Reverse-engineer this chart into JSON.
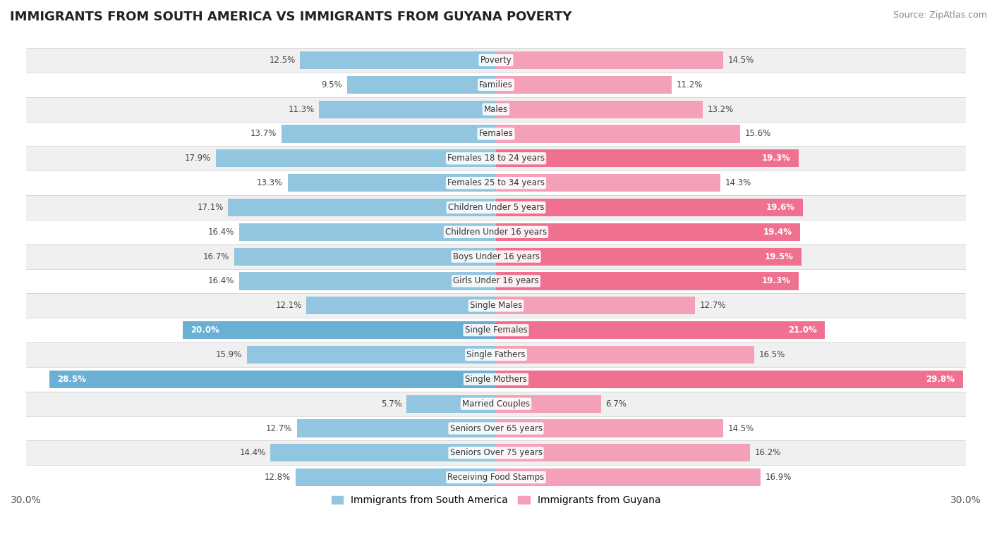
{
  "title": "IMMIGRANTS FROM SOUTH AMERICA VS IMMIGRANTS FROM GUYANA POVERTY",
  "source": "Source: ZipAtlas.com",
  "categories": [
    "Poverty",
    "Families",
    "Males",
    "Females",
    "Females 18 to 24 years",
    "Females 25 to 34 years",
    "Children Under 5 years",
    "Children Under 16 years",
    "Boys Under 16 years",
    "Girls Under 16 years",
    "Single Males",
    "Single Females",
    "Single Fathers",
    "Single Mothers",
    "Married Couples",
    "Seniors Over 65 years",
    "Seniors Over 75 years",
    "Receiving Food Stamps"
  ],
  "south_america": [
    12.5,
    9.5,
    11.3,
    13.7,
    17.9,
    13.3,
    17.1,
    16.4,
    16.7,
    16.4,
    12.1,
    20.0,
    15.9,
    28.5,
    5.7,
    12.7,
    14.4,
    12.8
  ],
  "guyana": [
    14.5,
    11.2,
    13.2,
    15.6,
    19.3,
    14.3,
    19.6,
    19.4,
    19.5,
    19.3,
    12.7,
    21.0,
    16.5,
    29.8,
    6.7,
    14.5,
    16.2,
    16.9
  ],
  "color_south_america": "#92C5E0",
  "color_guyana": "#F4A0B8",
  "color_gy_highlight": "#F07090",
  "color_sa_highlight": "#6AAFD4",
  "highlight_rows_gy": [
    4,
    6,
    7,
    8,
    9,
    11,
    13
  ],
  "highlight_rows_sa": [
    11,
    13
  ],
  "axis_max": 30.0,
  "bg_row_light": "#f0f0f0",
  "bg_row_white": "#ffffff",
  "bar_height": 0.72,
  "legend_label_sa": "Immigrants from South America",
  "legend_label_gy": "Immigrants from Guyana",
  "title_fontsize": 13,
  "label_fontsize": 8.5,
  "source_fontsize": 9
}
